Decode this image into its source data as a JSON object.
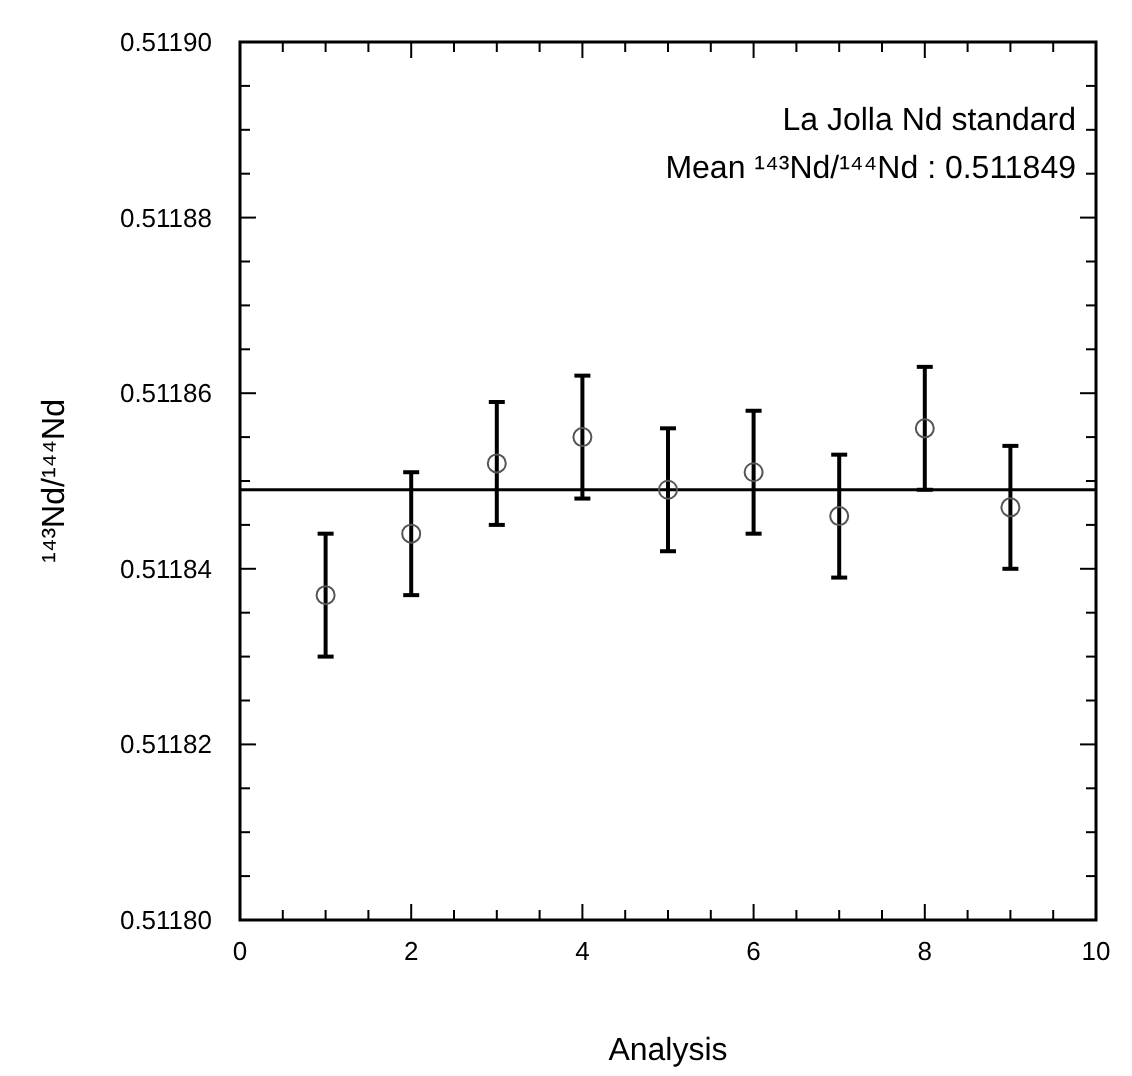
{
  "chart_data": {
    "type": "scatter",
    "xlabel": "Analysis",
    "ylabel": "¹⁴³Nd/¹⁴⁴Nd",
    "annotations": [
      "La Jolla Nd standard",
      "Mean ¹⁴³Nd/¹⁴⁴Nd : 0.511849"
    ],
    "x": [
      1,
      2,
      3,
      4,
      5,
      6,
      7,
      8,
      9
    ],
    "series": [
      {
        "color": "#555555",
        "values": [
          0.511837,
          0.511844,
          0.511852,
          0.511855,
          0.511849,
          0.511851,
          0.511846,
          0.511856,
          0.511847
        ],
        "errors": [
          7e-06,
          7e-06,
          7e-06,
          7e-06,
          7e-06,
          7e-06,
          7e-06,
          7e-06,
          7e-06
        ]
      }
    ],
    "marker": "circle",
    "ref_lines": [
      {
        "axis": "y",
        "value": 0.511849,
        "color": "#000000"
      }
    ],
    "xlim": [
      0,
      10
    ],
    "xticks": [
      0,
      {
        "value": 0.5,
        "label": null
      },
      {
        "value": 1,
        "label": null
      },
      {
        "value": 1.5,
        "label": null
      },
      2,
      {
        "value": 2.5,
        "label": null
      },
      {
        "value": 3,
        "label": null
      },
      {
        "value": 3.5,
        "label": null
      },
      4,
      {
        "value": 4.5,
        "label": null
      },
      {
        "value": 5,
        "label": null
      },
      {
        "value": 5.5,
        "label": null
      },
      6,
      {
        "value": 6.5,
        "label": null
      },
      {
        "value": 7,
        "label": null
      },
      {
        "value": 7.5,
        "label": null
      },
      8,
      {
        "value": 8.5,
        "label": null
      },
      {
        "value": 9,
        "label": null
      },
      {
        "value": 9.5,
        "label": null
      },
      10
    ],
    "ylim": [
      0.5118,
      0.5119
    ],
    "yticks": [
      {
        "value": 0.5118,
        "label": "0.51180"
      },
      {
        "value": 0.511805,
        "label": null
      },
      {
        "value": 0.51181,
        "label": null
      },
      {
        "value": 0.511815,
        "label": null
      },
      {
        "value": 0.51182,
        "label": "0.51182"
      },
      {
        "value": 0.511825,
        "label": null
      },
      {
        "value": 0.51183,
        "label": null
      },
      {
        "value": 0.511835,
        "label": null
      },
      {
        "value": 0.51184,
        "label": "0.51184"
      },
      {
        "value": 0.511845,
        "label": null
      },
      {
        "value": 0.51185,
        "label": null
      },
      {
        "value": 0.511855,
        "label": null
      },
      {
        "value": 0.51186,
        "label": "0.51186"
      },
      {
        "value": 0.511865,
        "label": null
      },
      {
        "value": 0.51187,
        "label": null
      },
      {
        "value": 0.511875,
        "label": null
      },
      {
        "value": 0.51188,
        "label": "0.51188"
      },
      {
        "value": 0.511885,
        "label": null
      },
      {
        "value": 0.51189,
        "label": null
      },
      {
        "value": 0.511895,
        "label": null
      },
      {
        "value": 0.5119,
        "label": "0.51190"
      }
    ],
    "grid": false
  }
}
